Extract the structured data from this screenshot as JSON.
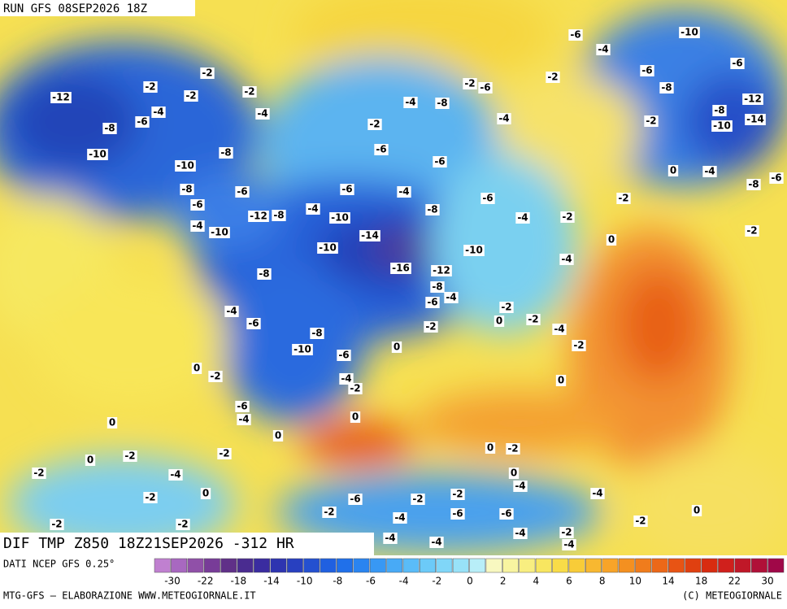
{
  "header": {
    "run": "RUN GFS 08SEP2026 18Z"
  },
  "map": {
    "title": "DIF TMP Z850 18Z21SEP2026 -312 HR",
    "labels": [
      "-12",
      "-8",
      "-10",
      "-6",
      "-4",
      "-2",
      "-2",
      "-2",
      "-2",
      "-4",
      "-8",
      "-10",
      "-6",
      "-8",
      "-6",
      "-4",
      "-10",
      "-12",
      "-8",
      "-4",
      "-10",
      "-14",
      "-16",
      "-12",
      "-10",
      "-8",
      "-6",
      "-4",
      "-10",
      "-8",
      "-8",
      "-10",
      "-6",
      "-4",
      "-6",
      "-6",
      "-4",
      "-2",
      "0",
      "-2",
      "0",
      "-2",
      "0",
      "-2",
      "-4",
      "-2",
      "0",
      "-4",
      "0",
      "-2",
      "-4",
      "-6",
      "-8",
      "-4",
      "-6",
      "-6",
      "-6",
      "-2",
      "-4",
      "-8",
      "-2",
      "-6",
      "-4",
      "-2",
      "-6",
      "-4",
      "-10",
      "-6",
      "-8",
      "-6",
      "-12",
      "-8",
      "-10",
      "-14",
      "-2",
      "0",
      "-4",
      "-8",
      "-6",
      "-2",
      "-2",
      "-4",
      "-2",
      "0",
      "0",
      "-2",
      "-4",
      "-2",
      "0",
      "-2",
      "0",
      "-2",
      "0",
      "-2",
      "-2",
      "0",
      "-2",
      "0",
      "-4",
      "-4",
      "-2",
      "-2",
      "-6",
      "-2",
      "-4",
      "-6",
      "-6",
      "-2",
      "0",
      "-4",
      "-2",
      "-4",
      "-4",
      "-4"
    ]
  },
  "colorbar": {
    "source": "DATI NCEP GFS 0.25°",
    "colors": [
      "#c080d0",
      "#a868c0",
      "#9050a8",
      "#783c98",
      "#603088",
      "#4a2c90",
      "#3a2ca0",
      "#2e34b0",
      "#2840c0",
      "#2450d0",
      "#2060e0",
      "#2070ea",
      "#2a84f0",
      "#3898f4",
      "#48aaf6",
      "#5abcf8",
      "#6ccaf8",
      "#80d6f8",
      "#98e2f8",
      "#b8eef8",
      "#f8f8c0",
      "#f8f4a0",
      "#f8ee80",
      "#f8e660",
      "#f8dc48",
      "#f8cc38",
      "#f8b830",
      "#f8a428",
      "#f49020",
      "#f07c1c",
      "#ec6818",
      "#e85414",
      "#e04010",
      "#d82c10",
      "#d0201c",
      "#c01828",
      "#b01038",
      "#a00848"
    ],
    "ticks": [
      -30,
      -22,
      -18,
      -14,
      -10,
      -8,
      -6,
      -4,
      -2,
      0,
      2,
      4,
      6,
      8,
      10,
      14,
      18,
      22,
      30
    ]
  },
  "footer": {
    "left": "MTG-GFS — ELABORAZIONE WWW.METEOGIORNALE.IT",
    "right": "(C) METEOGIORNALE"
  }
}
